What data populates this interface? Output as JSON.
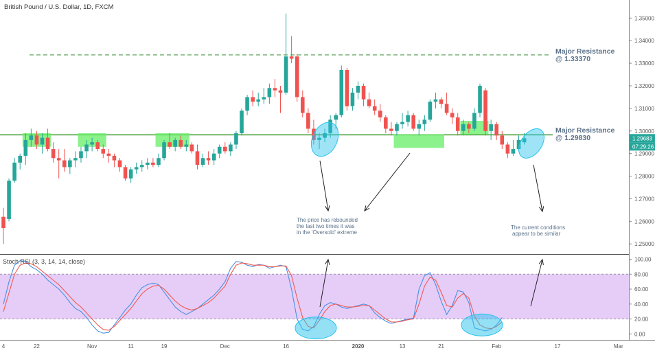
{
  "colors": {
    "up": "#26a69a",
    "down": "#ef5350",
    "support_line": "#3b9a2f",
    "resistance_dashed": "#4f9a4a",
    "zone_fill": "#66ee66",
    "annotation_ellipse": "#29c3ec",
    "overbought_band": "#e3c8f7",
    "rsi_k": "#4a90e2",
    "rsi_d": "#f05a4f",
    "annotation_text": "#5a7189",
    "price_tag": "#26a69a",
    "axis_text": "#555555"
  },
  "chart_data": [
    {
      "type": "candlestick",
      "title": "British Pound / U.S. Dollar, 1D, FXCM",
      "ylim": [
        1.2455,
        1.358
      ],
      "y_ticks": [
        "1.35000",
        "1.34000",
        "1.33000",
        "1.32000",
        "1.31000",
        "1.30000",
        "1.29000",
        "1.28000",
        "1.27000",
        "1.26000",
        "1.25000"
      ],
      "price_tag": "1.29683",
      "countdown_tag": "07:29:26",
      "levels": [
        {
          "name": "Major Resistance @ 1.33370",
          "value": 1.3337,
          "style": "dashed"
        },
        {
          "name": "Major Resistance @ 1.29830",
          "value": 1.2983,
          "style": "solid"
        }
      ],
      "annotations": [
        {
          "text_lines": [
            "Major Resistance",
            "@ 1.33370"
          ]
        },
        {
          "text_lines": [
            "Major Resistance",
            "@ 1.29830"
          ]
        },
        {
          "text_lines": [
            "The price has rebounded",
            "the last two times it was",
            "in the 'Oversold' extreme"
          ]
        },
        {
          "text_lines": [
            "The current conditions",
            "appear to be similar"
          ]
        }
      ],
      "candles": [
        {
          "o": 1.262,
          "h": 1.266,
          "l": 1.25,
          "c": 1.257
        },
        {
          "o": 1.261,
          "h": 1.279,
          "l": 1.26,
          "c": 1.278
        },
        {
          "o": 1.278,
          "h": 1.288,
          "l": 1.277,
          "c": 1.286
        },
        {
          "o": 1.286,
          "h": 1.29,
          "l": 1.283,
          "c": 1.289
        },
        {
          "o": 1.289,
          "h": 1.299,
          "l": 1.285,
          "c": 1.296
        },
        {
          "o": 1.296,
          "h": 1.301,
          "l": 1.293,
          "c": 1.298
        },
        {
          "o": 1.298,
          "h": 1.3,
          "l": 1.292,
          "c": 1.294
        },
        {
          "o": 1.294,
          "h": 1.299,
          "l": 1.29,
          "c": 1.297
        },
        {
          "o": 1.297,
          "h": 1.301,
          "l": 1.291,
          "c": 1.292
        },
        {
          "o": 1.292,
          "h": 1.295,
          "l": 1.286,
          "c": 1.288
        },
        {
          "o": 1.288,
          "h": 1.292,
          "l": 1.279,
          "c": 1.287
        },
        {
          "o": 1.287,
          "h": 1.292,
          "l": 1.282,
          "c": 1.284
        },
        {
          "o": 1.284,
          "h": 1.288,
          "l": 1.281,
          "c": 1.287
        },
        {
          "o": 1.287,
          "h": 1.291,
          "l": 1.284,
          "c": 1.288
        },
        {
          "o": 1.288,
          "h": 1.293,
          "l": 1.286,
          "c": 1.291
        },
        {
          "o": 1.291,
          "h": 1.296,
          "l": 1.288,
          "c": 1.294
        },
        {
          "o": 1.294,
          "h": 1.297,
          "l": 1.291,
          "c": 1.295
        },
        {
          "o": 1.295,
          "h": 1.296,
          "l": 1.291,
          "c": 1.292
        },
        {
          "o": 1.292,
          "h": 1.294,
          "l": 1.288,
          "c": 1.29
        },
        {
          "o": 1.29,
          "h": 1.292,
          "l": 1.286,
          "c": 1.289
        },
        {
          "o": 1.289,
          "h": 1.29,
          "l": 1.284,
          "c": 1.287
        },
        {
          "o": 1.287,
          "h": 1.288,
          "l": 1.282,
          "c": 1.284
        },
        {
          "o": 1.284,
          "h": 1.285,
          "l": 1.278,
          "c": 1.279
        },
        {
          "o": 1.279,
          "h": 1.284,
          "l": 1.277,
          "c": 1.283
        },
        {
          "o": 1.283,
          "h": 1.286,
          "l": 1.281,
          "c": 1.284
        },
        {
          "o": 1.284,
          "h": 1.287,
          "l": 1.282,
          "c": 1.285
        },
        {
          "o": 1.285,
          "h": 1.288,
          "l": 1.283,
          "c": 1.286
        },
        {
          "o": 1.286,
          "h": 1.288,
          "l": 1.284,
          "c": 1.285
        },
        {
          "o": 1.285,
          "h": 1.29,
          "l": 1.284,
          "c": 1.288
        },
        {
          "o": 1.288,
          "h": 1.296,
          "l": 1.287,
          "c": 1.295
        },
        {
          "o": 1.295,
          "h": 1.299,
          "l": 1.292,
          "c": 1.293
        },
        {
          "o": 1.293,
          "h": 1.297,
          "l": 1.291,
          "c": 1.296
        },
        {
          "o": 1.296,
          "h": 1.298,
          "l": 1.292,
          "c": 1.293
        },
        {
          "o": 1.293,
          "h": 1.296,
          "l": 1.291,
          "c": 1.294
        },
        {
          "o": 1.294,
          "h": 1.295,
          "l": 1.29,
          "c": 1.291
        },
        {
          "o": 1.291,
          "h": 1.294,
          "l": 1.283,
          "c": 1.285
        },
        {
          "o": 1.285,
          "h": 1.29,
          "l": 1.284,
          "c": 1.288
        },
        {
          "o": 1.288,
          "h": 1.291,
          "l": 1.285,
          "c": 1.287
        },
        {
          "o": 1.287,
          "h": 1.292,
          "l": 1.285,
          "c": 1.29
        },
        {
          "o": 1.29,
          "h": 1.294,
          "l": 1.288,
          "c": 1.293
        },
        {
          "o": 1.293,
          "h": 1.295,
          "l": 1.29,
          "c": 1.291
        },
        {
          "o": 1.291,
          "h": 1.295,
          "l": 1.289,
          "c": 1.294
        },
        {
          "o": 1.294,
          "h": 1.3,
          "l": 1.292,
          "c": 1.299
        },
        {
          "o": 1.299,
          "h": 1.31,
          "l": 1.298,
          "c": 1.309
        },
        {
          "o": 1.309,
          "h": 1.316,
          "l": 1.307,
          "c": 1.315
        },
        {
          "o": 1.315,
          "h": 1.318,
          "l": 1.311,
          "c": 1.313
        },
        {
          "o": 1.313,
          "h": 1.317,
          "l": 1.311,
          "c": 1.314
        },
        {
          "o": 1.314,
          "h": 1.319,
          "l": 1.312,
          "c": 1.315
        },
        {
          "o": 1.315,
          "h": 1.321,
          "l": 1.312,
          "c": 1.319
        },
        {
          "o": 1.319,
          "h": 1.323,
          "l": 1.315,
          "c": 1.318
        },
        {
          "o": 1.318,
          "h": 1.32,
          "l": 1.308,
          "c": 1.317
        },
        {
          "o": 1.317,
          "h": 1.352,
          "l": 1.316,
          "c": 1.333
        },
        {
          "o": 1.333,
          "h": 1.342,
          "l": 1.33,
          "c": 1.332
        },
        {
          "o": 1.333,
          "h": 1.334,
          "l": 1.313,
          "c": 1.315
        },
        {
          "o": 1.315,
          "h": 1.318,
          "l": 1.306,
          "c": 1.308
        },
        {
          "o": 1.308,
          "h": 1.31,
          "l": 1.299,
          "c": 1.301
        },
        {
          "o": 1.301,
          "h": 1.305,
          "l": 1.294,
          "c": 1.296
        },
        {
          "o": 1.296,
          "h": 1.299,
          "l": 1.292,
          "c": 1.297
        },
        {
          "o": 1.297,
          "h": 1.301,
          "l": 1.295,
          "c": 1.299
        },
        {
          "o": 1.299,
          "h": 1.307,
          "l": 1.297,
          "c": 1.305
        },
        {
          "o": 1.305,
          "h": 1.308,
          "l": 1.301,
          "c": 1.307
        },
        {
          "o": 1.307,
          "h": 1.329,
          "l": 1.306,
          "c": 1.327
        },
        {
          "o": 1.327,
          "h": 1.328,
          "l": 1.309,
          "c": 1.311
        },
        {
          "o": 1.311,
          "h": 1.319,
          "l": 1.309,
          "c": 1.317
        },
        {
          "o": 1.317,
          "h": 1.322,
          "l": 1.314,
          "c": 1.32
        },
        {
          "o": 1.32,
          "h": 1.321,
          "l": 1.311,
          "c": 1.314
        },
        {
          "o": 1.314,
          "h": 1.317,
          "l": 1.31,
          "c": 1.311
        },
        {
          "o": 1.311,
          "h": 1.314,
          "l": 1.307,
          "c": 1.309
        },
        {
          "o": 1.309,
          "h": 1.312,
          "l": 1.304,
          "c": 1.306
        },
        {
          "o": 1.306,
          "h": 1.307,
          "l": 1.299,
          "c": 1.301
        },
        {
          "o": 1.301,
          "h": 1.304,
          "l": 1.298,
          "c": 1.3
        },
        {
          "o": 1.3,
          "h": 1.304,
          "l": 1.298,
          "c": 1.303
        },
        {
          "o": 1.303,
          "h": 1.308,
          "l": 1.301,
          "c": 1.304
        },
        {
          "o": 1.304,
          "h": 1.309,
          "l": 1.302,
          "c": 1.307
        },
        {
          "o": 1.307,
          "h": 1.308,
          "l": 1.3,
          "c": 1.301
        },
        {
          "o": 1.301,
          "h": 1.305,
          "l": 1.298,
          "c": 1.303
        },
        {
          "o": 1.303,
          "h": 1.307,
          "l": 1.3,
          "c": 1.305
        },
        {
          "o": 1.305,
          "h": 1.314,
          "l": 1.304,
          "c": 1.313
        },
        {
          "o": 1.313,
          "h": 1.317,
          "l": 1.31,
          "c": 1.314
        },
        {
          "o": 1.314,
          "h": 1.315,
          "l": 1.31,
          "c": 1.312
        },
        {
          "o": 1.312,
          "h": 1.317,
          "l": 1.307,
          "c": 1.308
        },
        {
          "o": 1.308,
          "h": 1.31,
          "l": 1.303,
          "c": 1.306
        },
        {
          "o": 1.306,
          "h": 1.308,
          "l": 1.298,
          "c": 1.3
        },
        {
          "o": 1.3,
          "h": 1.305,
          "l": 1.298,
          "c": 1.303
        },
        {
          "o": 1.303,
          "h": 1.304,
          "l": 1.299,
          "c": 1.301
        },
        {
          "o": 1.301,
          "h": 1.31,
          "l": 1.3,
          "c": 1.308
        },
        {
          "o": 1.308,
          "h": 1.321,
          "l": 1.306,
          "c": 1.32
        },
        {
          "o": 1.318,
          "h": 1.319,
          "l": 1.298,
          "c": 1.3
        },
        {
          "o": 1.3,
          "h": 1.305,
          "l": 1.296,
          "c": 1.303
        },
        {
          "o": 1.303,
          "h": 1.304,
          "l": 1.296,
          "c": 1.298
        },
        {
          "o": 1.298,
          "h": 1.3,
          "l": 1.292,
          "c": 1.294
        },
        {
          "o": 1.294,
          "h": 1.295,
          "l": 1.288,
          "c": 1.29
        },
        {
          "o": 1.29,
          "h": 1.296,
          "l": 1.289,
          "c": 1.292
        },
        {
          "o": 1.292,
          "h": 1.298,
          "l": 1.291,
          "c": 1.296
        },
        {
          "o": 1.295,
          "h": 1.299,
          "l": 1.294,
          "c": 1.2968
        }
      ],
      "highlight_zones": [
        {
          "i_from": 4,
          "i_to": 8,
          "y_from": 1.293,
          "y_to": 1.299
        },
        {
          "i_from": 14,
          "i_to": 18,
          "y_from": 1.293,
          "y_to": 1.299
        },
        {
          "i_from": 28,
          "i_to": 33,
          "y_from": 1.293,
          "y_to": 1.299
        },
        {
          "i_from": 71,
          "i_to": 79,
          "y_from": 1.2925,
          "y_to": 1.2985
        },
        {
          "i_from": 83,
          "i_to": 87,
          "y_from": 1.2985,
          "y_to": 1.3045
        }
      ]
    },
    {
      "type": "line",
      "title": "Stoch RSI (3, 3, 14, 14, close)",
      "ylim": [
        -8,
        106
      ],
      "y_ticks": [
        "100.00",
        "80.00",
        "60.00",
        "40.00",
        "20.00",
        "0.00"
      ],
      "band": [
        20,
        80
      ],
      "series": [
        {
          "values": [
            40,
            70,
            92,
            98,
            97,
            90,
            86,
            80,
            72,
            66,
            60,
            52,
            42,
            34,
            30,
            22,
            12,
            4,
            1,
            2,
            12,
            22,
            32,
            40,
            52,
            62,
            66,
            68,
            66,
            56,
            46,
            36,
            30,
            26,
            30,
            34,
            40,
            46,
            52,
            60,
            70,
            88,
            97,
            96,
            92,
            90,
            93,
            92,
            88,
            90,
            92,
            90,
            60,
            20,
            6,
            4,
            10,
            26,
            38,
            42,
            40,
            36,
            34,
            36,
            38,
            40,
            38,
            28,
            22,
            17,
            14,
            16,
            18,
            20,
            21,
            60,
            78,
            82,
            66,
            44,
            26,
            38,
            58,
            56,
            42,
            8,
            6,
            4,
            6,
            12,
            22
          ]
        },
        {
          "values": [
            30,
            55,
            80,
            92,
            95,
            94,
            90,
            84,
            78,
            72,
            66,
            58,
            50,
            42,
            36,
            28,
            20,
            12,
            6,
            5,
            10,
            18,
            26,
            34,
            44,
            54,
            60,
            64,
            65,
            60,
            52,
            44,
            38,
            34,
            32,
            34,
            38,
            42,
            48,
            56,
            64,
            80,
            92,
            95,
            94,
            92,
            92,
            92,
            90,
            90,
            91,
            91,
            78,
            48,
            22,
            10,
            8,
            18,
            30,
            38,
            40,
            38,
            36,
            36,
            37,
            38,
            38,
            32,
            26,
            20,
            16,
            16,
            17,
            19,
            20,
            40,
            64,
            76,
            72,
            56,
            38,
            36,
            48,
            54,
            48,
            24,
            12,
            8,
            7,
            10,
            16
          ]
        }
      ],
      "ellipses": [
        {
          "i": 56,
          "v": 8
        },
        {
          "i": 86,
          "v": 12
        }
      ]
    }
  ],
  "x_axis": {
    "ticks": [
      {
        "label": "4",
        "i": 0
      },
      {
        "label": "22",
        "i": 6
      },
      {
        "label": "Nov",
        "i": 16
      },
      {
        "label": "11",
        "i": 23
      },
      {
        "label": "19",
        "i": 29
      },
      {
        "label": "Dec",
        "i": 40
      },
      {
        "label": "16",
        "i": 51
      },
      {
        "label": "2020",
        "i": 64
      },
      {
        "label": "13",
        "i": 72
      },
      {
        "label": "21",
        "i": 79
      },
      {
        "label": "Feb",
        "i": 89
      },
      {
        "label": "17",
        "i": 100
      },
      {
        "label": "Mar",
        "i": 111
      }
    ]
  }
}
